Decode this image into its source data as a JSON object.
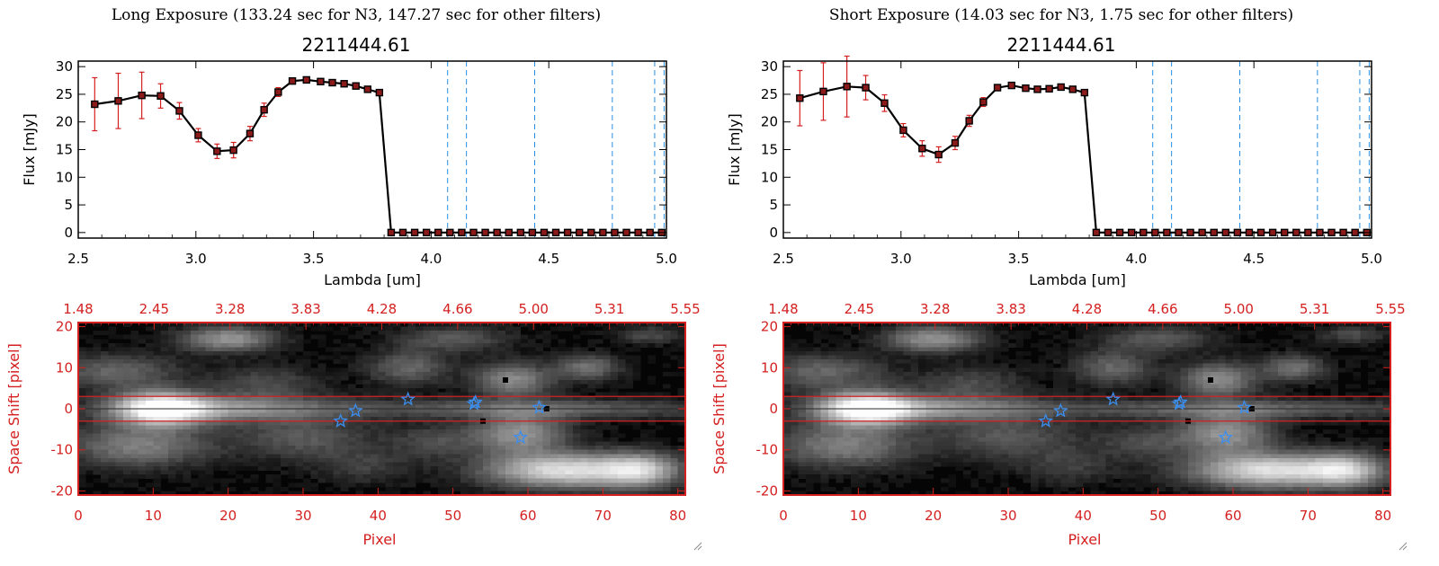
{
  "chart_data": [
    {
      "type": "line",
      "title": "Long Exposure (133.24 sec for N3, 147.27 sec for other filters)",
      "subtitle": "2211444.61",
      "xlabel": "Lambda [um]",
      "ylabel": "Flux [mJy]",
      "xlim": [
        2.5,
        5.0
      ],
      "ylim": [
        -1,
        31
      ],
      "xticks": [
        "2.5",
        "3.0",
        "3.5",
        "4.0",
        "4.5",
        "5.0"
      ],
      "yticks": [
        "0",
        "5",
        "10",
        "15",
        "20",
        "25",
        "30"
      ],
      "x": [
        2.57,
        2.67,
        2.77,
        2.85,
        2.93,
        3.01,
        3.09,
        3.16,
        3.23,
        3.29,
        3.35,
        3.41,
        3.47,
        3.53,
        3.58,
        3.63,
        3.68,
        3.73,
        3.78,
        3.83,
        3.88,
        3.93,
        3.98,
        4.03,
        4.08,
        4.13,
        4.18,
        4.23,
        4.28,
        4.33,
        4.38,
        4.43,
        4.48,
        4.53,
        4.58,
        4.63,
        4.68,
        4.73,
        4.78,
        4.83,
        4.88,
        4.93,
        4.98
      ],
      "y": [
        23.2,
        23.8,
        24.8,
        24.7,
        22.0,
        17.6,
        14.7,
        14.9,
        17.9,
        22.2,
        25.4,
        27.4,
        27.6,
        27.3,
        27.1,
        26.9,
        26.5,
        25.9,
        25.3,
        0,
        0,
        0,
        0,
        0,
        0,
        0,
        0,
        0,
        0,
        0,
        0,
        0,
        0,
        0,
        0,
        0,
        0,
        0,
        0,
        0,
        0,
        0,
        0
      ],
      "yerr": [
        4.8,
        5.0,
        4.2,
        2.2,
        1.5,
        1.2,
        1.3,
        1.4,
        1.3,
        1.2,
        0.8,
        0.5,
        0.4,
        0.4,
        0.4,
        0.4,
        0.4,
        0.4,
        0.4,
        0,
        0,
        0,
        0,
        0,
        0,
        0,
        0,
        0,
        0,
        0,
        0,
        0,
        0,
        0,
        0,
        0,
        0,
        0,
        0,
        0,
        0,
        0,
        0
      ],
      "vlines": [
        4.07,
        4.15,
        4.44,
        4.77,
        4.95,
        4.99
      ],
      "image_axis": {
        "xlabel": "Pixel",
        "ylabel": "Space Shift [pixel]",
        "xlim": [
          0,
          81
        ],
        "ylim": [
          -21,
          21
        ],
        "xticks": [
          "0",
          "10",
          "20",
          "30",
          "40",
          "50",
          "60",
          "70",
          "80"
        ],
        "yticks": [
          "-20",
          "-10",
          "0",
          "10",
          "20"
        ],
        "top_ticks": [
          "1.48",
          "2.45",
          "3.28",
          "3.83",
          "4.28",
          "4.66",
          "5.00",
          "5.31",
          "5.55"
        ],
        "aperture": [
          -3,
          3
        ],
        "stars": [
          [
            35,
            -3
          ],
          [
            37,
            -0.5
          ],
          [
            44,
            2.3
          ],
          [
            52.8,
            1.2
          ],
          [
            53,
            1.6
          ],
          [
            59,
            -7
          ],
          [
            61.5,
            0.3
          ]
        ]
      }
    },
    {
      "type": "line",
      "title": "Short Exposure (14.03 sec for N3, 1.75 sec for other filters)",
      "subtitle": "2211444.61",
      "xlabel": "Lambda [um]",
      "ylabel": "Flux [mJy]",
      "xlim": [
        2.5,
        5.0
      ],
      "ylim": [
        -1,
        31
      ],
      "xticks": [
        "2.5",
        "3.0",
        "3.5",
        "4.0",
        "4.5",
        "5.0"
      ],
      "yticks": [
        "0",
        "5",
        "10",
        "15",
        "20",
        "25",
        "30"
      ],
      "x": [
        2.57,
        2.67,
        2.77,
        2.85,
        2.93,
        3.01,
        3.09,
        3.16,
        3.23,
        3.29,
        3.35,
        3.41,
        3.47,
        3.53,
        3.58,
        3.63,
        3.68,
        3.73,
        3.78,
        3.83,
        3.88,
        3.93,
        3.98,
        4.03,
        4.08,
        4.13,
        4.18,
        4.23,
        4.28,
        4.33,
        4.38,
        4.43,
        4.48,
        4.53,
        4.58,
        4.63,
        4.68,
        4.73,
        4.78,
        4.83,
        4.88,
        4.93,
        4.98
      ],
      "y": [
        24.3,
        25.5,
        26.4,
        26.2,
        23.4,
        18.5,
        15.2,
        14.1,
        16.2,
        20.2,
        23.6,
        26.2,
        26.6,
        26.1,
        25.9,
        26.0,
        26.3,
        25.9,
        25.3,
        0,
        0,
        0,
        0,
        0,
        0,
        0,
        0,
        0,
        0,
        0,
        0,
        0,
        0,
        0,
        0,
        0,
        0,
        0,
        0,
        0,
        0,
        0,
        0
      ],
      "yerr": [
        5.0,
        5.2,
        5.5,
        2.2,
        1.5,
        1.2,
        1.4,
        1.4,
        1.2,
        1.0,
        0.8,
        0.5,
        0.4,
        0.4,
        0.4,
        0.4,
        0.4,
        0.4,
        0.4,
        0,
        0,
        0,
        0,
        0,
        0,
        0,
        0,
        0,
        0,
        0,
        0,
        0,
        0,
        0,
        0,
        0,
        0,
        0,
        0,
        0,
        0,
        0,
        0
      ],
      "vlines": [
        4.07,
        4.15,
        4.44,
        4.77,
        4.95,
        4.99
      ],
      "image_axis": {
        "xlabel": "Pixel",
        "ylabel": "Space Shift [pixel]",
        "xlim": [
          0,
          81
        ],
        "ylim": [
          -21,
          21
        ],
        "xticks": [
          "0",
          "10",
          "20",
          "30",
          "40",
          "50",
          "60",
          "70",
          "80"
        ],
        "yticks": [
          "-20",
          "-10",
          "0",
          "10",
          "20"
        ],
        "top_ticks": [
          "1.48",
          "2.45",
          "3.28",
          "3.83",
          "4.28",
          "4.66",
          "5.00",
          "5.31",
          "5.55"
        ],
        "aperture": [
          -3,
          3
        ],
        "stars": [
          [
            35,
            -3
          ],
          [
            37,
            -0.5
          ],
          [
            44,
            2.3
          ],
          [
            52.8,
            1.2
          ],
          [
            53,
            1.6
          ],
          [
            59,
            -7
          ],
          [
            61.5,
            0.3
          ]
        ]
      }
    }
  ],
  "colors": {
    "line": "#000000",
    "errorbar": "#d42020",
    "marker_fill": "#8b1a1a",
    "vline": "#2a8ee0",
    "image_axis": "#d42020",
    "star": "#3a8ef0"
  }
}
